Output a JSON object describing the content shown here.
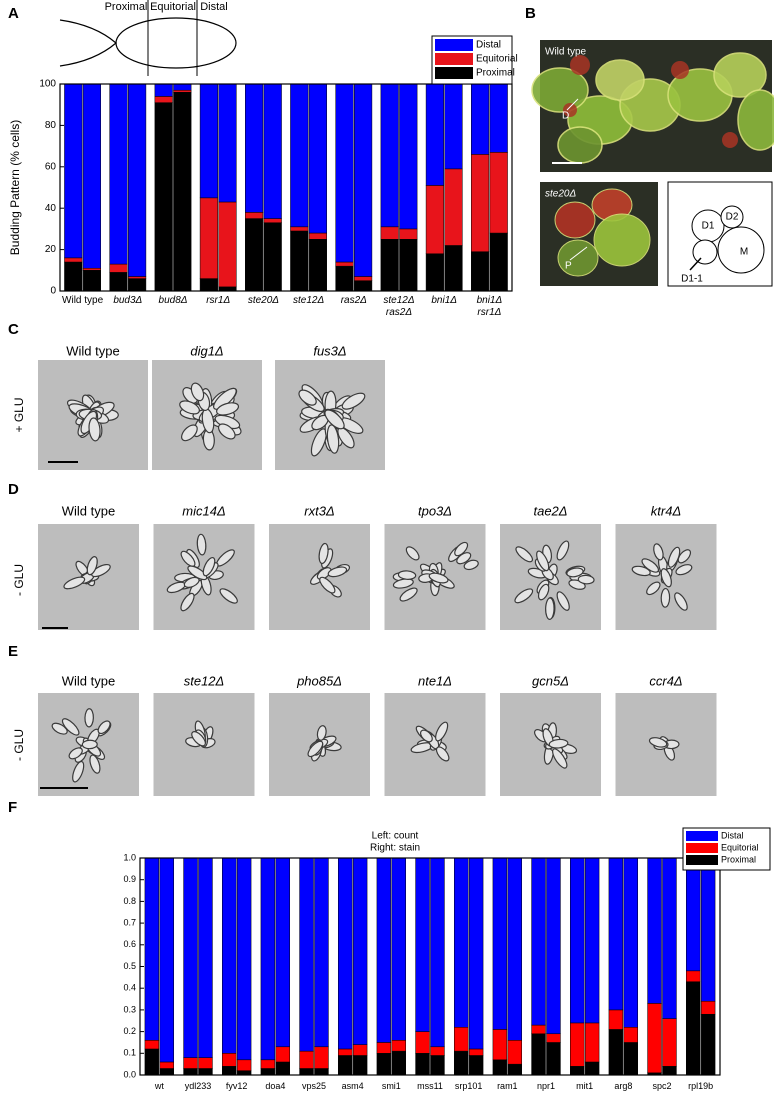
{
  "figure": {
    "panel_labels": [
      "A",
      "B",
      "C",
      "D",
      "E",
      "F"
    ],
    "diagram_a": [
      "Proximal",
      "Equitorial",
      "Distal"
    ],
    "panel_b": {
      "top_label": "Wild type",
      "top_marker": "D",
      "bottom_label": "ste20Δ",
      "bottom_marker": "P",
      "schematic": [
        "D1",
        "D2",
        "M",
        "D1-1"
      ]
    },
    "panel_c": {
      "condition": "+ GLU",
      "strains": [
        "Wild type",
        "dig1Δ",
        "fus3Δ"
      ]
    },
    "panel_d": {
      "condition": "- GLU",
      "strains": [
        "Wild type",
        "mic14Δ",
        "rxt3Δ",
        "tpo3Δ",
        "tae2Δ",
        "ktr4Δ"
      ]
    },
    "panel_e": {
      "condition": "- GLU",
      "strains": [
        "Wild type",
        "ste12Δ",
        "pho85Δ",
        "nte1Δ",
        "gcn5Δ",
        "ccr4Δ"
      ]
    }
  },
  "chart_data": [
    {
      "type": "bar",
      "stacked": true,
      "ylabel": "Budding Pattern (% cells)",
      "legend": "upper right",
      "categories": [
        "Wild type",
        "bud3Δ",
        "bud8Δ",
        "rsr1Δ",
        "ste20Δ",
        "ste12Δ",
        "ras2Δ",
        [
          "ste12Δ",
          "ras2Δ"
        ],
        "bni1Δ",
        [
          "bni1Δ",
          "rsr1Δ"
        ]
      ],
      "series": [
        {
          "name": "Distal",
          "color": "#0000ff",
          "values": [
            [
              84,
              89
            ],
            [
              87,
              93
            ],
            [
              6,
              3
            ],
            [
              55,
              57
            ],
            [
              62,
              65
            ],
            [
              69,
              72
            ],
            [
              86,
              93
            ],
            [
              69,
              70
            ],
            [
              49,
              41
            ],
            [
              34,
              33
            ]
          ]
        },
        {
          "name": "Equitorial",
          "color": "#e8141b",
          "values": [
            [
              2,
              1
            ],
            [
              4,
              1
            ],
            [
              3,
              1
            ],
            [
              39,
              41
            ],
            [
              3,
              2
            ],
            [
              2,
              3
            ],
            [
              2,
              2
            ],
            [
              6,
              5
            ],
            [
              33,
              37
            ],
            [
              47,
              39
            ]
          ]
        },
        {
          "name": "Proximal",
          "color": "#000000",
          "values": [
            [
              14,
              10
            ],
            [
              9,
              6
            ],
            [
              91,
              96
            ],
            [
              6,
              2
            ],
            [
              35,
              33
            ],
            [
              29,
              25
            ],
            [
              12,
              5
            ],
            [
              25,
              25
            ],
            [
              18,
              22
            ],
            [
              19,
              28
            ]
          ]
        }
      ],
      "ylim": [
        0,
        100
      ],
      "yticks": [
        0,
        20,
        40,
        60,
        80,
        100
      ]
    },
    {
      "type": "bar",
      "stacked": true,
      "annotations": [
        "Left:  count",
        "Right:  stain"
      ],
      "legend": "upper right",
      "categories": [
        "wt",
        "ydl233",
        "fyv12",
        "doa4",
        "vps25",
        "asm4",
        "smi1",
        "mss11",
        "srp101",
        "ram1",
        "npr1",
        "mit1",
        "arg8",
        "spc2",
        "rpl19b"
      ],
      "series": [
        {
          "name": "Distal",
          "color": "#0000ff",
          "values": [
            [
              0.84,
              0.94
            ],
            [
              0.92,
              0.92
            ],
            [
              0.9,
              0.93
            ],
            [
              0.93,
              0.87
            ],
            [
              0.89,
              0.87
            ],
            [
              0.88,
              0.86
            ],
            [
              0.85,
              0.84
            ],
            [
              0.8,
              0.87
            ],
            [
              0.78,
              0.88
            ],
            [
              0.79,
              0.84
            ],
            [
              0.77,
              0.81
            ],
            [
              0.76,
              0.76
            ],
            [
              0.7,
              0.78
            ],
            [
              0.67,
              0.74
            ],
            [
              0.52,
              0.66
            ]
          ]
        },
        {
          "name": "Equitorial",
          "color": "#ff0000",
          "values": [
            [
              0.04,
              0.03
            ],
            [
              0.05,
              0.05
            ],
            [
              0.06,
              0.05
            ],
            [
              0.04,
              0.07
            ],
            [
              0.08,
              0.1
            ],
            [
              0.03,
              0.05
            ],
            [
              0.05,
              0.05
            ],
            [
              0.1,
              0.04
            ],
            [
              0.11,
              0.03
            ],
            [
              0.14,
              0.11
            ],
            [
              0.04,
              0.04
            ],
            [
              0.2,
              0.18
            ],
            [
              0.09,
              0.07
            ],
            [
              0.32,
              0.22
            ],
            [
              0.05,
              0.06
            ]
          ]
        },
        {
          "name": "Proximal",
          "color": "#000000",
          "values": [
            [
              0.12,
              0.03
            ],
            [
              0.03,
              0.03
            ],
            [
              0.04,
              0.02
            ],
            [
              0.03,
              0.06
            ],
            [
              0.03,
              0.03
            ],
            [
              0.09,
              0.09
            ],
            [
              0.1,
              0.11
            ],
            [
              0.1,
              0.09
            ],
            [
              0.11,
              0.09
            ],
            [
              0.07,
              0.05
            ],
            [
              0.19,
              0.15
            ],
            [
              0.04,
              0.06
            ],
            [
              0.21,
              0.15
            ],
            [
              0.01,
              0.04
            ],
            [
              0.43,
              0.28
            ]
          ]
        }
      ],
      "ylim": [
        0,
        1
      ],
      "yticks": [
        {
          "value": 0,
          "label": "0.0"
        },
        0.1,
        0.2,
        0.3,
        0.4,
        0.5,
        0.6,
        0.7,
        0.8,
        0.9,
        {
          "value": 1,
          "label": "1.0"
        }
      ]
    }
  ]
}
